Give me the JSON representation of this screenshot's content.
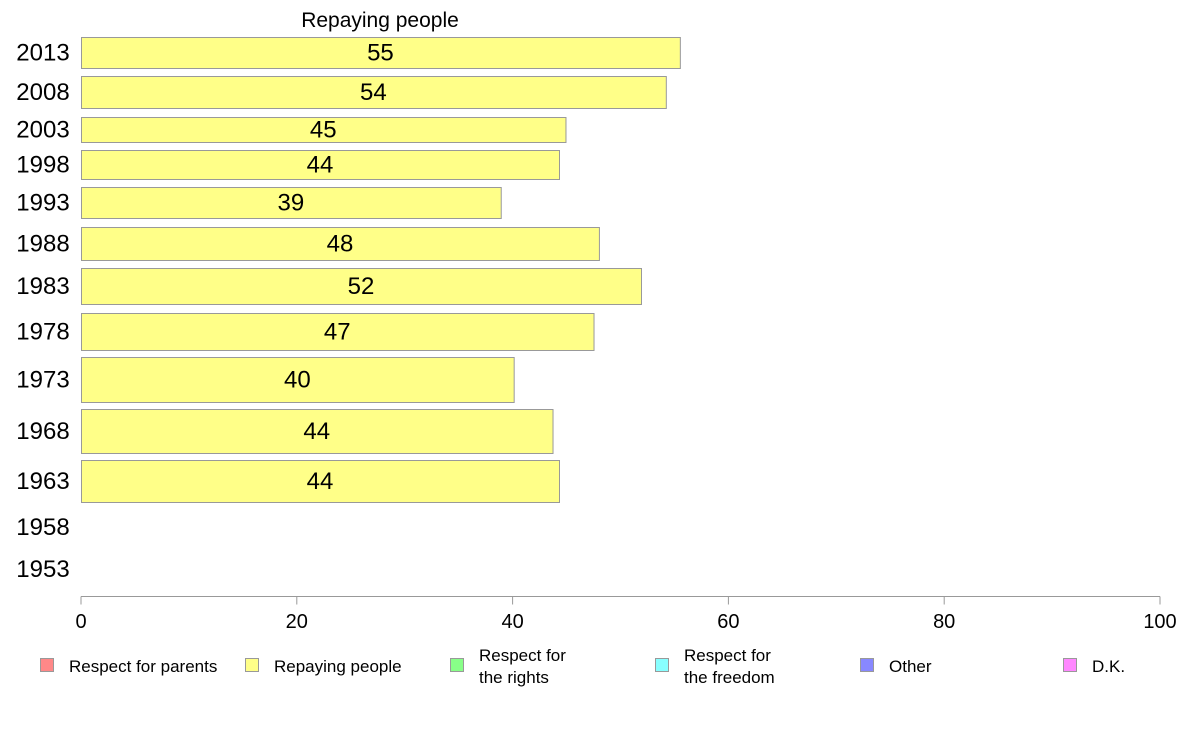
{
  "chart_data": {
    "type": "bar",
    "orientation": "horizontal",
    "title": "Repaying people",
    "categories": [
      "2013",
      "2008",
      "2003",
      "1998",
      "1993",
      "1988",
      "1983",
      "1978",
      "1973",
      "1968",
      "1963",
      "1958",
      "1953"
    ],
    "series": [
      {
        "name": "Repaying people",
        "color": "#ffff88",
        "values": [
          55,
          54,
          45,
          44,
          39,
          48,
          52,
          47,
          40,
          44,
          44,
          null,
          null
        ],
        "extent": [
          55.5,
          54.2,
          44.9,
          44.3,
          38.9,
          48.0,
          51.9,
          47.5,
          40.1,
          43.7,
          44.3,
          null,
          null
        ]
      }
    ],
    "xlim": [
      0,
      100
    ],
    "xticks": [
      "0",
      "20",
      "40",
      "60",
      "80",
      "100"
    ],
    "xlabel": "",
    "ylabel": "",
    "grid": false,
    "legend_position": "bottom",
    "legend": [
      {
        "lines": [
          "Respect for parents"
        ],
        "color": "#ff8888"
      },
      {
        "lines": [
          "Repaying people"
        ],
        "color": "#ffff88"
      },
      {
        "lines": [
          "Respect for",
          "the rights"
        ],
        "color": "#88ff88"
      },
      {
        "lines": [
          "Respect for",
          "the freedom"
        ],
        "color": "#88ffff"
      },
      {
        "lines": [
          "Other"
        ],
        "color": "#8888ff"
      },
      {
        "lines": [
          "D.K."
        ],
        "color": "#ff88ff"
      }
    ]
  }
}
